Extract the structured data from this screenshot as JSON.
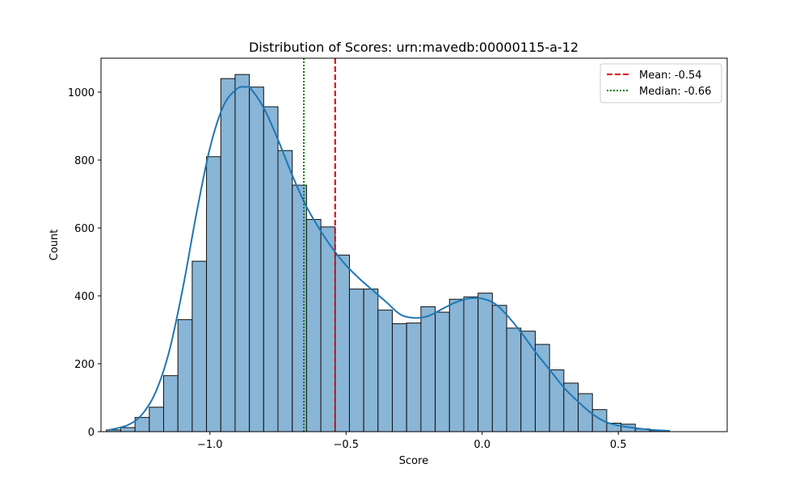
{
  "chart_data": {
    "type": "histogram",
    "title": "Distribution of Scores: urn:mavedb:00000115-a-12",
    "xlabel": "Score",
    "ylabel": "Count",
    "xlim": [
      -1.4,
      0.9
    ],
    "ylim": [
      0,
      1100
    ],
    "xticks": [
      -1.0,
      -0.5,
      0.0,
      0.5
    ],
    "xtick_labels": [
      "−1.0",
      "−0.5",
      "0.0",
      "0.5"
    ],
    "yticks": [
      0,
      200,
      400,
      600,
      800,
      1000
    ],
    "ytick_labels": [
      "0",
      "200",
      "400",
      "600",
      "800",
      "1000"
    ],
    "grid": false,
    "bin_start": -1.38,
    "bin_width": 0.0525,
    "counts": [
      5,
      12,
      42,
      72,
      165,
      330,
      502,
      810,
      1040,
      1052,
      1015,
      957,
      828,
      726,
      625,
      603,
      520,
      420,
      420,
      358,
      318,
      320,
      368,
      352,
      390,
      397,
      408,
      372,
      305,
      296,
      257,
      182,
      143,
      112,
      65,
      25,
      22,
      8,
      3
    ],
    "bar_fill": "#89b5d6",
    "bar_edge": "#111111",
    "kde": {
      "color": "#1f77b4",
      "x": [
        -1.37,
        -1.3,
        -1.25,
        -1.2,
        -1.15,
        -1.1,
        -1.05,
        -1.0,
        -0.95,
        -0.9,
        -0.87,
        -0.85,
        -0.8,
        -0.75,
        -0.7,
        -0.65,
        -0.6,
        -0.55,
        -0.5,
        -0.45,
        -0.4,
        -0.35,
        -0.3,
        -0.25,
        -0.2,
        -0.15,
        -0.1,
        -0.05,
        0.0,
        0.05,
        0.1,
        0.15,
        0.2,
        0.25,
        0.3,
        0.35,
        0.4,
        0.45,
        0.5,
        0.55,
        0.6,
        0.65,
        0.69
      ],
      "y": [
        5,
        20,
        50,
        115,
        235,
        420,
        640,
        835,
        960,
        1010,
        1015,
        1010,
        950,
        860,
        760,
        670,
        600,
        540,
        490,
        450,
        415,
        380,
        345,
        335,
        340,
        360,
        380,
        392,
        392,
        375,
        335,
        285,
        230,
        180,
        130,
        90,
        55,
        30,
        18,
        12,
        7,
        4,
        2
      ]
    },
    "lines": [
      {
        "name": "Mean: -0.54",
        "value": -0.54,
        "color": "#dd0000",
        "style": "dashed"
      },
      {
        "name": "Median: -0.66",
        "value": -0.655,
        "color": "#008000",
        "style": "dotted"
      }
    ],
    "legend_position": "top-right"
  }
}
